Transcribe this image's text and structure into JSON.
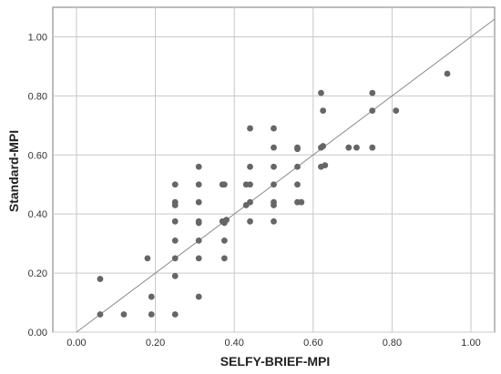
{
  "chart_data": {
    "type": "scatter",
    "title": "",
    "xlabel": "SELFY-BRIEF-MPI",
    "ylabel": "Standard-MPI",
    "xlim": [
      -0.06,
      1.06
    ],
    "ylim": [
      0.0,
      1.1
    ],
    "x_ticks": [
      "0.00",
      "0.20",
      "0.40",
      "0.60",
      "0.80",
      "1.00"
    ],
    "y_ticks": [
      "0.00",
      "0.20",
      "0.40",
      "0.60",
      "0.80",
      "1.00"
    ],
    "grid": true,
    "reference_line": "y = x",
    "marker_color": "#666666",
    "points": [
      [
        0.06,
        0.18
      ],
      [
        0.06,
        0.06
      ],
      [
        0.12,
        0.06
      ],
      [
        0.18,
        0.25
      ],
      [
        0.19,
        0.12
      ],
      [
        0.19,
        0.06
      ],
      [
        0.25,
        0.5
      ],
      [
        0.25,
        0.44
      ],
      [
        0.25,
        0.43
      ],
      [
        0.25,
        0.375
      ],
      [
        0.25,
        0.31
      ],
      [
        0.25,
        0.25
      ],
      [
        0.25,
        0.19
      ],
      [
        0.25,
        0.06
      ],
      [
        0.31,
        0.56
      ],
      [
        0.31,
        0.5
      ],
      [
        0.31,
        0.44
      ],
      [
        0.31,
        0.375
      ],
      [
        0.31,
        0.37
      ],
      [
        0.31,
        0.31
      ],
      [
        0.31,
        0.25
      ],
      [
        0.31,
        0.12
      ],
      [
        0.37,
        0.5
      ],
      [
        0.375,
        0.5
      ],
      [
        0.37,
        0.375
      ],
      [
        0.375,
        0.37
      ],
      [
        0.38,
        0.38
      ],
      [
        0.375,
        0.31
      ],
      [
        0.375,
        0.25
      ],
      [
        0.43,
        0.5
      ],
      [
        0.44,
        0.69
      ],
      [
        0.44,
        0.56
      ],
      [
        0.44,
        0.5
      ],
      [
        0.44,
        0.44
      ],
      [
        0.43,
        0.43
      ],
      [
        0.44,
        0.375
      ],
      [
        0.5,
        0.69
      ],
      [
        0.5,
        0.625
      ],
      [
        0.5,
        0.56
      ],
      [
        0.5,
        0.5
      ],
      [
        0.5,
        0.44
      ],
      [
        0.5,
        0.43
      ],
      [
        0.5,
        0.375
      ],
      [
        0.56,
        0.625
      ],
      [
        0.56,
        0.62
      ],
      [
        0.56,
        0.56
      ],
      [
        0.56,
        0.5
      ],
      [
        0.56,
        0.44
      ],
      [
        0.57,
        0.44
      ],
      [
        0.62,
        0.81
      ],
      [
        0.625,
        0.75
      ],
      [
        0.62,
        0.625
      ],
      [
        0.625,
        0.63
      ],
      [
        0.62,
        0.56
      ],
      [
        0.63,
        0.565
      ],
      [
        0.69,
        0.625
      ],
      [
        0.71,
        0.625
      ],
      [
        0.75,
        0.81
      ],
      [
        0.75,
        0.75
      ],
      [
        0.75,
        0.625
      ],
      [
        0.81,
        0.75
      ],
      [
        0.94,
        0.875
      ]
    ]
  }
}
